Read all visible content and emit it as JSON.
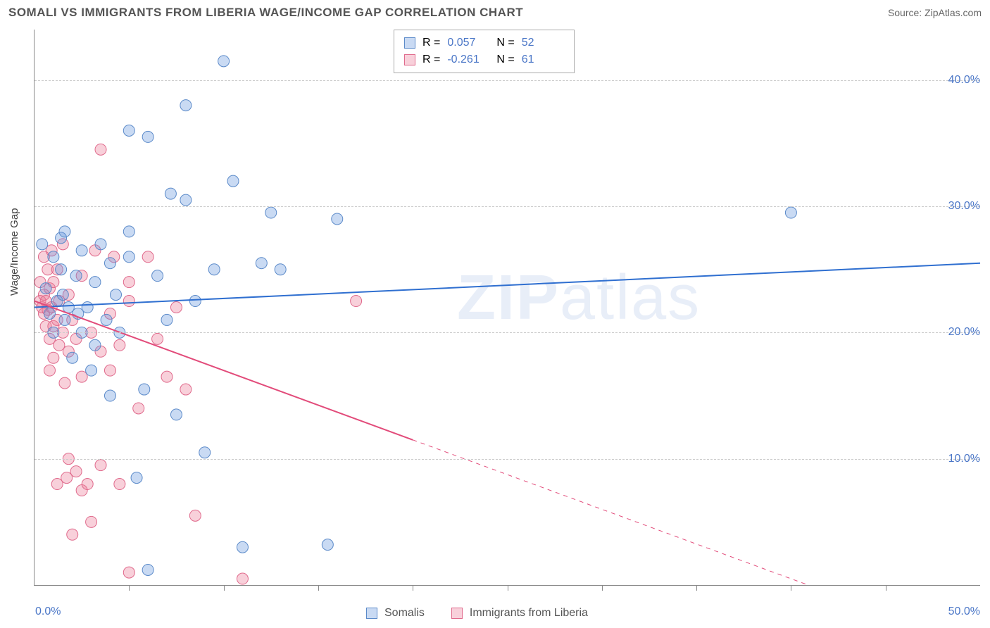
{
  "title": "SOMALI VS IMMIGRANTS FROM LIBERIA WAGE/INCOME GAP CORRELATION CHART",
  "source": "Source: ZipAtlas.com",
  "y_axis_label": "Wage/Income Gap",
  "watermark_a": "ZIP",
  "watermark_b": "atlas",
  "x_min": 0.0,
  "x_max": 50.0,
  "y_min": 0.0,
  "y_max": 44.0,
  "y_ticks": [
    10.0,
    20.0,
    30.0,
    40.0
  ],
  "y_tick_labels": [
    "10.0%",
    "20.0%",
    "30.0%",
    "40.0%"
  ],
  "x_ticks_minor": [
    5,
    10,
    15,
    20,
    25,
    30,
    35,
    40,
    45
  ],
  "x_tick_labels": {
    "0": "0.0%",
    "50": "50.0%"
  },
  "series": [
    {
      "name": "Somalis",
      "color_fill": "rgba(100,150,220,0.35)",
      "color_stroke": "#5b8ac9",
      "line_color": "#2f6fd0",
      "line_width": 2,
      "R": "0.057",
      "N": "52",
      "trend_y_at_xmin": 22.0,
      "trend_y_at_xmax": 25.5,
      "trend_solid_to_x": 50.0,
      "points": [
        [
          0.4,
          27.0
        ],
        [
          0.6,
          23.5
        ],
        [
          0.8,
          21.5
        ],
        [
          1.0,
          26.0
        ],
        [
          1.0,
          20.0
        ],
        [
          1.2,
          22.5
        ],
        [
          1.4,
          27.5
        ],
        [
          1.4,
          25.0
        ],
        [
          1.5,
          23.0
        ],
        [
          1.6,
          21.0
        ],
        [
          1.6,
          28.0
        ],
        [
          1.8,
          22.0
        ],
        [
          2.0,
          18.0
        ],
        [
          2.2,
          24.5
        ],
        [
          2.3,
          21.5
        ],
        [
          2.5,
          26.5
        ],
        [
          2.5,
          20.0
        ],
        [
          2.8,
          22.0
        ],
        [
          3.0,
          17.0
        ],
        [
          3.2,
          24.0
        ],
        [
          3.2,
          19.0
        ],
        [
          3.5,
          27.0
        ],
        [
          3.8,
          21.0
        ],
        [
          4.0,
          25.5
        ],
        [
          4.0,
          15.0
        ],
        [
          4.3,
          23.0
        ],
        [
          4.5,
          20.0
        ],
        [
          5.0,
          26.0
        ],
        [
          5.0,
          28.0
        ],
        [
          5.0,
          36.0
        ],
        [
          5.4,
          8.5
        ],
        [
          5.8,
          15.5
        ],
        [
          6.0,
          35.5
        ],
        [
          6.0,
          1.2
        ],
        [
          6.5,
          24.5
        ],
        [
          7.0,
          21.0
        ],
        [
          7.2,
          31.0
        ],
        [
          7.5,
          13.5
        ],
        [
          8.0,
          30.5
        ],
        [
          8.0,
          38.0
        ],
        [
          8.5,
          22.5
        ],
        [
          9.0,
          10.5
        ],
        [
          9.5,
          25.0
        ],
        [
          10.0,
          41.5
        ],
        [
          10.5,
          32.0
        ],
        [
          11.0,
          3.0
        ],
        [
          12.0,
          25.5
        ],
        [
          12.5,
          29.5
        ],
        [
          13.0,
          25.0
        ],
        [
          15.5,
          3.2
        ],
        [
          16.0,
          29.0
        ],
        [
          40.0,
          29.5
        ]
      ]
    },
    {
      "name": "Immigrants from Liberia",
      "color_fill": "rgba(235,120,150,0.35)",
      "color_stroke": "#e06a8c",
      "line_color": "#e24b7a",
      "line_width": 2,
      "R": "-0.261",
      "N": "61",
      "trend_y_at_xmin": 22.5,
      "trend_y_at_xmax": -5.0,
      "trend_solid_to_x": 20.0,
      "points": [
        [
          0.3,
          22.5
        ],
        [
          0.3,
          24.0
        ],
        [
          0.4,
          22.0
        ],
        [
          0.5,
          23.0
        ],
        [
          0.5,
          21.5
        ],
        [
          0.5,
          26.0
        ],
        [
          0.6,
          22.5
        ],
        [
          0.6,
          20.5
        ],
        [
          0.7,
          25.0
        ],
        [
          0.7,
          21.8
        ],
        [
          0.8,
          23.5
        ],
        [
          0.8,
          19.5
        ],
        [
          0.8,
          17.0
        ],
        [
          0.9,
          22.0
        ],
        [
          0.9,
          26.5
        ],
        [
          1.0,
          20.5
        ],
        [
          1.0,
          24.0
        ],
        [
          1.0,
          18.0
        ],
        [
          1.2,
          25.0
        ],
        [
          1.2,
          21.0
        ],
        [
          1.2,
          8.0
        ],
        [
          1.3,
          19.0
        ],
        [
          1.3,
          22.5
        ],
        [
          1.5,
          20.0
        ],
        [
          1.5,
          27.0
        ],
        [
          1.6,
          16.0
        ],
        [
          1.7,
          8.5
        ],
        [
          1.8,
          23.0
        ],
        [
          1.8,
          18.5
        ],
        [
          1.8,
          10.0
        ],
        [
          2.0,
          21.0
        ],
        [
          2.0,
          4.0
        ],
        [
          2.2,
          19.5
        ],
        [
          2.2,
          9.0
        ],
        [
          2.5,
          16.5
        ],
        [
          2.5,
          24.5
        ],
        [
          2.5,
          7.5
        ],
        [
          2.8,
          8.0
        ],
        [
          3.0,
          20.0
        ],
        [
          3.0,
          5.0
        ],
        [
          3.2,
          26.5
        ],
        [
          3.5,
          18.5
        ],
        [
          3.5,
          9.5
        ],
        [
          3.5,
          34.5
        ],
        [
          4.0,
          21.5
        ],
        [
          4.0,
          17.0
        ],
        [
          4.2,
          26.0
        ],
        [
          4.5,
          19.0
        ],
        [
          4.5,
          8.0
        ],
        [
          5.0,
          22.5
        ],
        [
          5.0,
          24.0
        ],
        [
          5.0,
          1.0
        ],
        [
          5.5,
          14.0
        ],
        [
          6.0,
          26.0
        ],
        [
          6.5,
          19.5
        ],
        [
          7.0,
          16.5
        ],
        [
          7.5,
          22.0
        ],
        [
          8.0,
          15.5
        ],
        [
          8.5,
          5.5
        ],
        [
          11.0,
          0.5
        ],
        [
          17.0,
          22.5
        ]
      ]
    }
  ],
  "legend_bottom": [
    "Somalis",
    "Immigrants from Liberia"
  ],
  "marker_radius": 8,
  "chart_bg": "#ffffff"
}
